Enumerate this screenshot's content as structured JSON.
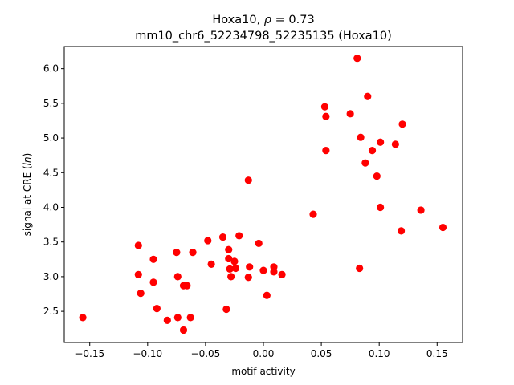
{
  "chart_data": {
    "type": "scatter",
    "title_line1_pre": "Hoxa10, ",
    "title_line1_rho": "ρ",
    "title_line1_post": " = 0.73",
    "title_line2": "mm10_chr6_52234798_52235135 (Hoxa10)",
    "xlabel": "motif activity",
    "ylabel_pre": "signal at CRE (",
    "ylabel_italic": "ln",
    "ylabel_post": ")",
    "xlim": [
      -0.172,
      0.172
    ],
    "ylim": [
      2.05,
      6.32
    ],
    "xticks": [
      -0.15,
      -0.1,
      -0.05,
      0.0,
      0.05,
      0.1,
      0.15
    ],
    "xtick_labels": [
      "−0.15",
      "−0.10",
      "−0.05",
      "0.00",
      "0.05",
      "0.10",
      "0.15"
    ],
    "yticks": [
      2.5,
      3.0,
      3.5,
      4.0,
      4.5,
      5.0,
      5.5,
      6.0
    ],
    "ytick_labels": [
      "2.5",
      "3.0",
      "3.5",
      "4.0",
      "4.5",
      "5.0",
      "5.5",
      "6.0"
    ],
    "marker_color": "#ff0000",
    "grid": false,
    "points": [
      {
        "x": -0.156,
        "y": 2.41
      },
      {
        "x": -0.108,
        "y": 3.45
      },
      {
        "x": -0.108,
        "y": 3.03
      },
      {
        "x": -0.106,
        "y": 2.76
      },
      {
        "x": -0.095,
        "y": 3.25
      },
      {
        "x": -0.095,
        "y": 2.92
      },
      {
        "x": -0.092,
        "y": 2.54
      },
      {
        "x": -0.083,
        "y": 2.37
      },
      {
        "x": -0.075,
        "y": 3.35
      },
      {
        "x": -0.074,
        "y": 3.0
      },
      {
        "x": -0.074,
        "y": 2.41
      },
      {
        "x": -0.069,
        "y": 2.87
      },
      {
        "x": -0.069,
        "y": 2.23
      },
      {
        "x": -0.066,
        "y": 2.87
      },
      {
        "x": -0.063,
        "y": 2.41
      },
      {
        "x": -0.061,
        "y": 3.35
      },
      {
        "x": -0.048,
        "y": 3.52
      },
      {
        "x": -0.045,
        "y": 3.18
      },
      {
        "x": -0.035,
        "y": 3.57
      },
      {
        "x": -0.032,
        "y": 2.53
      },
      {
        "x": -0.03,
        "y": 3.39
      },
      {
        "x": -0.03,
        "y": 3.26
      },
      {
        "x": -0.029,
        "y": 3.11
      },
      {
        "x": -0.028,
        "y": 3.0
      },
      {
        "x": -0.025,
        "y": 3.22
      },
      {
        "x": -0.024,
        "y": 3.12
      },
      {
        "x": -0.021,
        "y": 3.59
      },
      {
        "x": -0.013,
        "y": 4.39
      },
      {
        "x": -0.013,
        "y": 2.99
      },
      {
        "x": -0.012,
        "y": 3.14
      },
      {
        "x": -0.004,
        "y": 3.48
      },
      {
        "x": 0.0,
        "y": 3.09
      },
      {
        "x": 0.003,
        "y": 2.73
      },
      {
        "x": 0.009,
        "y": 3.14
      },
      {
        "x": 0.009,
        "y": 3.07
      },
      {
        "x": 0.016,
        "y": 3.03
      },
      {
        "x": 0.043,
        "y": 3.9
      },
      {
        "x": 0.053,
        "y": 5.45
      },
      {
        "x": 0.054,
        "y": 5.31
      },
      {
        "x": 0.054,
        "y": 4.82
      },
      {
        "x": 0.075,
        "y": 5.35
      },
      {
        "x": 0.081,
        "y": 6.15
      },
      {
        "x": 0.083,
        "y": 3.12
      },
      {
        "x": 0.084,
        "y": 5.01
      },
      {
        "x": 0.088,
        "y": 4.64
      },
      {
        "x": 0.09,
        "y": 5.6
      },
      {
        "x": 0.094,
        "y": 4.82
      },
      {
        "x": 0.098,
        "y": 4.45
      },
      {
        "x": 0.101,
        "y": 4.94
      },
      {
        "x": 0.101,
        "y": 4.0
      },
      {
        "x": 0.114,
        "y": 4.91
      },
      {
        "x": 0.119,
        "y": 3.66
      },
      {
        "x": 0.12,
        "y": 5.2
      },
      {
        "x": 0.136,
        "y": 3.96
      },
      {
        "x": 0.155,
        "y": 3.71
      }
    ]
  }
}
